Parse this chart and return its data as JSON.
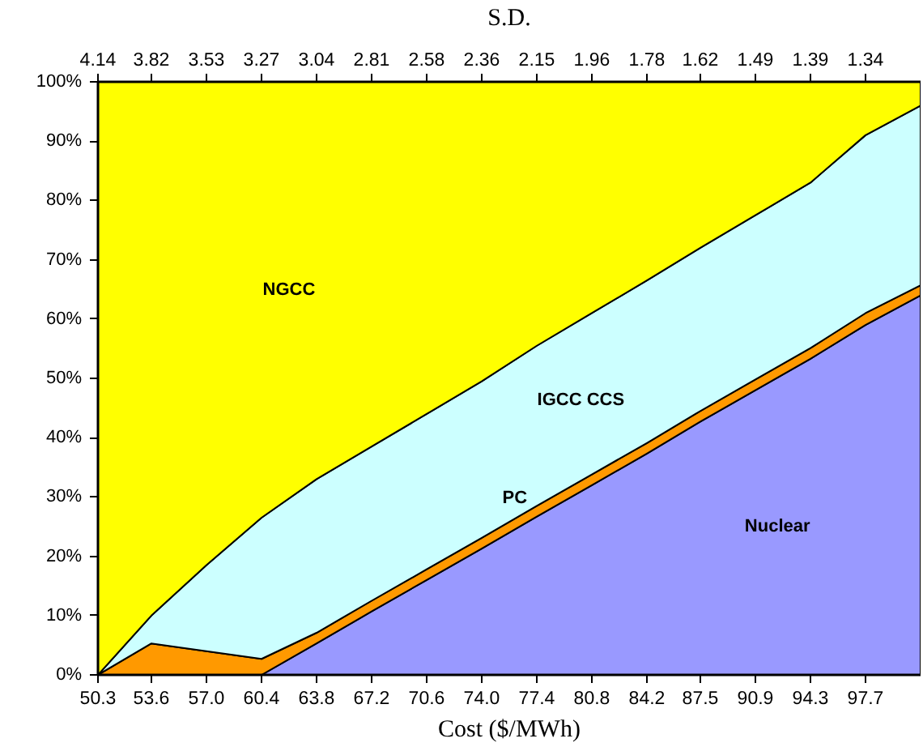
{
  "chart_data": {
    "type": "area",
    "stacked": true,
    "xlabel": "Cost ($/MWh)",
    "x2label": "S.D.",
    "x": [
      50.3,
      53.6,
      57.0,
      60.4,
      63.8,
      67.2,
      70.6,
      74.0,
      77.4,
      80.8,
      84.2,
      87.5,
      90.9,
      94.3,
      97.7,
      101.1
    ],
    "xlim": [
      50.3,
      101.1
    ],
    "xticks": [
      50.3,
      53.6,
      {
        "value": 57.0,
        "label": "57.0"
      },
      60.4,
      63.8,
      67.2,
      70.6,
      {
        "value": 74.0,
        "label": "74.0"
      },
      77.4,
      80.8,
      84.2,
      87.5,
      90.9,
      94.3,
      97.7
    ],
    "ylim": [
      0,
      100
    ],
    "yticks": [
      {
        "value": 0,
        "label": "0%"
      },
      {
        "value": 10,
        "label": "10%"
      },
      {
        "value": 20,
        "label": "20%"
      },
      {
        "value": 30,
        "label": "30%"
      },
      {
        "value": 40,
        "label": "40%"
      },
      {
        "value": 50,
        "label": "50%"
      },
      {
        "value": 60,
        "label": "60%"
      },
      {
        "value": 70,
        "label": "70%"
      },
      {
        "value": 80,
        "label": "80%"
      },
      {
        "value": 90,
        "label": "90%"
      },
      {
        "value": 100,
        "label": "100%"
      }
    ],
    "annotations": [
      "4.14",
      "3.82",
      "3.53",
      "3.27",
      "3.04",
      "2.81",
      "2.58",
      "2.36",
      "2.15",
      "1.96",
      "1.78",
      "1.62",
      "1.49",
      "1.39",
      "1.34"
    ],
    "series": [
      {
        "name": "Nuclear",
        "color": "#9999ff",
        "values": [
          0,
          0,
          0,
          0,
          5.3,
          10.7,
          16,
          21.3,
          26.7,
          32,
          37.3,
          42.7,
          48,
          53.3,
          59,
          64
        ]
      },
      {
        "name": "PC",
        "color": "#ff9900",
        "values": [
          0,
          5.3,
          4,
          2.7,
          1.8,
          1.8,
          1.8,
          1.8,
          1.8,
          1.8,
          1.8,
          1.8,
          1.8,
          1.8,
          2,
          1.7
        ]
      },
      {
        "name": "IGCC CCS",
        "color": "#ccffff",
        "values": [
          0,
          4.7,
          14.5,
          23.8,
          25.9,
          26,
          26.2,
          26.4,
          27,
          27.2,
          27.4,
          27.5,
          27.7,
          27.9,
          30,
          30.3
        ]
      },
      {
        "name": "NGCC",
        "color": "#ffff00",
        "values": [
          100,
          90,
          81.5,
          73.5,
          67,
          61.5,
          56,
          50.5,
          44.5,
          39,
          33.5,
          28,
          22.5,
          17,
          9,
          4
        ]
      }
    ]
  }
}
